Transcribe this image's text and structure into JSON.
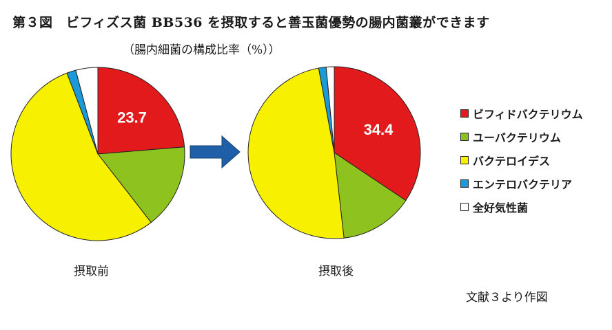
{
  "title": "第３図　ビフィズス菌 BB536 を摂取すると善玉菌優勢の腸内菌叢ができます",
  "subtitle": "（腸内細菌の構成比率（%））",
  "source": "文献３より作図",
  "colors": {
    "bifidobacterium": "#e31a1c",
    "eubacterium": "#8ec21f",
    "bacteroides": "#f7f000",
    "enterobacteria": "#1a9ad9",
    "aerobes": "#ffffff",
    "arrow": "#1f5fa8"
  },
  "legend": [
    {
      "label": "ビフィドバクテリウム",
      "color_key": "bifidobacterium"
    },
    {
      "label": "ユーバクテリウム",
      "color_key": "eubacterium"
    },
    {
      "label": "バクテロイデス",
      "color_key": "bacteroides"
    },
    {
      "label": "エンテロバクテリア",
      "color_key": "enterobacteria"
    },
    {
      "label": "全好気性菌",
      "color_key": "aerobes"
    }
  ],
  "chart_data": [
    {
      "type": "pie",
      "label": "摂取前",
      "categories": [
        "ビフィドバクテリウム",
        "ユーバクテリウム",
        "バクテロイデス",
        "エンテロバクテリア",
        "全好気性菌"
      ],
      "values": [
        23.7,
        15.8,
        54.7,
        1.7,
        4.1
      ],
      "shown_label": "23.7"
    },
    {
      "type": "pie",
      "label": "摂取後",
      "categories": [
        "ビフィドバクテリウム",
        "ユーバクテリウム",
        "バクテロイデス",
        "エンテロバクテリア",
        "全好気性菌"
      ],
      "values": [
        34.4,
        13.8,
        48.9,
        1.4,
        1.5
      ],
      "shown_label": "34.4"
    }
  ]
}
